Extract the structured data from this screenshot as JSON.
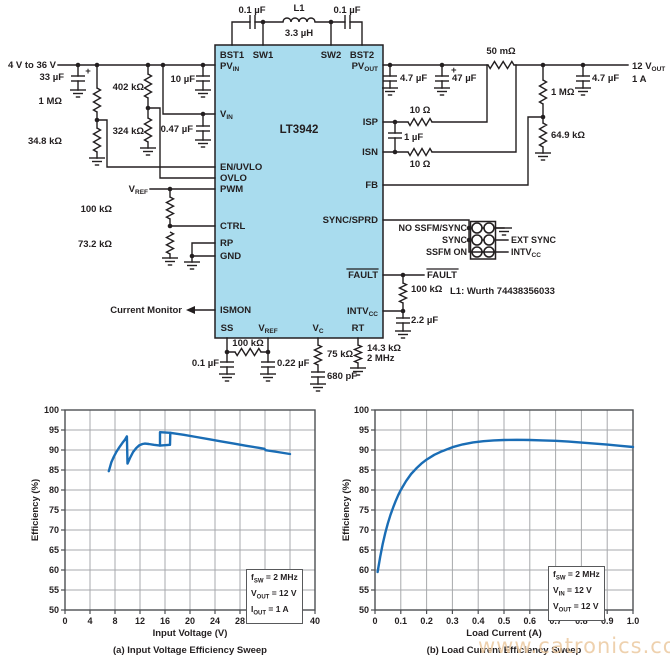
{
  "schematic": {
    "ic_name": "LT3942",
    "pins": {
      "bst1": "BST1",
      "sw1": "SW1",
      "sw2": "SW2",
      "bst2": "BST2",
      "pv_in": {
        "b": "PV",
        "s": "IN"
      },
      "v_in": {
        "b": "V",
        "s": "IN"
      },
      "en_uvlo": "EN/UVLO",
      "ovlo": "OVLO",
      "pwm": "PWM",
      "ctrl": "CTRL",
      "rp": "RP",
      "gnd": "GND",
      "ismon": "ISMON",
      "ss": "SS",
      "v_ref": {
        "b": "V",
        "s": "REF"
      },
      "v_c": {
        "b": "V",
        "s": "C"
      },
      "rt": "RT",
      "pv_out": {
        "b": "PV",
        "s": "OUT"
      },
      "isp": "ISP",
      "isn": "ISN",
      "fb": "FB",
      "sync_sprd": "SYNC/SPRD",
      "fault": "FAULT",
      "intvcc": {
        "b": "INTV",
        "s": "CC"
      }
    },
    "labels": {
      "c_bst1": "0.1 µF",
      "l1": "L1",
      "l1_val": "3.3 µH",
      "c_bst2": "0.1 µF",
      "vin_range": "4 V to 36 V",
      "c_in": "33 µF",
      "plus_in": "+",
      "r_uvlo_top": "1 MΩ",
      "r_uvlo_bot": "34.8 kΩ",
      "r_ovlo_top": "402 kΩ",
      "r_ovlo_bot": "324 kΩ",
      "c_pvin": "10 µF",
      "c_vin": "0.47 µF",
      "vref_net": {
        "b": "V",
        "s": "REF"
      },
      "r_ctrl_top": "100 kΩ",
      "r_ctrl_bot": "73.2 kΩ",
      "current_monitor": "Current Monitor",
      "r_ss": "100 kΩ",
      "c_ss": "0.1 µF",
      "c_vref": "0.22 µF",
      "r_vc": "75 kΩ",
      "c_vc": "680 pF",
      "r_rt": "14.3 kΩ",
      "rt_freq": "2 MHz",
      "r_sense": "50 mΩ",
      "c_out1": "4.7 µF",
      "plus_out": "+",
      "c_out2": "47 µF",
      "c_out3": "4.7 µF",
      "r_isp": "10 Ω",
      "r_isn": "10 Ω",
      "c_filt": "1 µF",
      "r_fb_top": "1 MΩ",
      "r_fb_bot": "64.9 kΩ",
      "out_v": {
        "b": "12 V",
        "s": "OUT"
      },
      "out_i": "1 A",
      "jumper_no_ssfm": "NO SSFM/SYNC",
      "jumper_sync": "SYNC",
      "jumper_ssfm_on": "SSFM ON",
      "ext_sync": "EXT SYNC",
      "intvcc_net": {
        "b": "INTV",
        "s": "CC"
      },
      "fault_net": "FAULT",
      "r_fault": "100 kΩ",
      "c_intvcc": "2.2 µF",
      "l1_note": "L1: Wurth 74438356033"
    }
  },
  "chart_data": [
    {
      "type": "line",
      "title": "(a) Input Voltage Efficiency Sweep",
      "xlabel": "Input Voltage (V)",
      "ylabel": "Efficiency (%)",
      "xlim": [
        0,
        40
      ],
      "ylim": [
        50,
        100
      ],
      "xticks": [
        "0",
        "4",
        "8",
        "12",
        "16",
        "20",
        "24",
        "28",
        "32",
        "36",
        "40"
      ],
      "yticks": [
        "50",
        "55",
        "60",
        "65",
        "70",
        "75",
        "80",
        "85",
        "90",
        "95",
        "100"
      ],
      "grid": true,
      "legend": "none",
      "annotation": [
        {
          "pre": "f",
          "sub": "SW",
          "post": " = 2 MHz"
        },
        {
          "pre": "V",
          "sub": "OUT",
          "post": " = 12 V"
        },
        {
          "pre": "I",
          "sub": "OUT",
          "post": " = 1 A"
        }
      ],
      "series": [
        {
          "name": "efficiency-sweep",
          "x": [
            7.0,
            7.4,
            7.8,
            8.2,
            8.7,
            9.2,
            9.6,
            9.85,
            9.9,
            10.0,
            10.4,
            10.9,
            11.4,
            11.9,
            12.4,
            12.8,
            13.4,
            14.2,
            15.2,
            16.8,
            16.85,
            17.5,
            19,
            21,
            23,
            25,
            27,
            29,
            31,
            31.9,
            32.1,
            34,
            36
          ],
          "y": [
            84.7,
            86.9,
            88.3,
            89.5,
            90.7,
            91.8,
            92.6,
            93.3,
            93.4,
            86.6,
            88.0,
            89.5,
            90.5,
            91.2,
            91.5,
            91.6,
            91.5,
            91.3,
            91.1,
            91.3,
            94.3,
            94.15,
            93.8,
            93.25,
            92.7,
            92.15,
            91.6,
            91.05,
            90.55,
            90.3,
            89.95,
            89.5,
            89.0
          ]
        },
        {
          "name": "hysteresis-segment",
          "x": [
            15.2,
            15.2,
            16.85
          ],
          "y": [
            91.1,
            94.45,
            94.3
          ]
        }
      ]
    },
    {
      "type": "line",
      "title": "(b) Load Current Efficiency Sweep",
      "xlabel": "Load Current (A)",
      "ylabel": "Efficiency (%)",
      "xlim": [
        0,
        1.0
      ],
      "ylim": [
        50,
        100
      ],
      "xticks": [
        "0",
        "0.1",
        "0.2",
        "0.3",
        "0.4",
        "0.5",
        "0.6",
        "0.7",
        "0.8",
        "0.9",
        "1.0"
      ],
      "yticks": [
        "50",
        "55",
        "60",
        "65",
        "70",
        "75",
        "80",
        "85",
        "90",
        "95",
        "100"
      ],
      "grid": true,
      "legend": "none",
      "annotation": [
        {
          "pre": "f",
          "sub": "SW",
          "post": " = 2 MHz"
        },
        {
          "pre": "V",
          "sub": "IN",
          "post": " = 12 V"
        },
        {
          "pre": "V",
          "sub": "OUT",
          "post": " = 12 V"
        }
      ],
      "series": [
        {
          "name": "efficiency-sweep",
          "x": [
            0.01,
            0.02,
            0.03,
            0.04,
            0.05,
            0.06,
            0.07,
            0.08,
            0.09,
            0.1,
            0.12,
            0.14,
            0.16,
            0.18,
            0.2,
            0.23,
            0.26,
            0.3,
            0.34,
            0.38,
            0.42,
            0.46,
            0.5,
            0.55,
            0.6,
            0.65,
            0.7,
            0.75,
            0.8,
            0.85,
            0.9,
            0.95,
            1.0
          ],
          "y": [
            59.5,
            63.3,
            66.5,
            69.3,
            71.7,
            73.8,
            75.6,
            77.2,
            78.7,
            80.0,
            82.2,
            84.0,
            85.4,
            86.6,
            87.6,
            88.8,
            89.7,
            90.7,
            91.4,
            91.9,
            92.2,
            92.4,
            92.5,
            92.55,
            92.5,
            92.4,
            92.3,
            92.1,
            91.85,
            91.6,
            91.35,
            91.05,
            90.75
          ]
        }
      ]
    }
  ],
  "watermark": "www.catronics.com",
  "colors": {
    "curve": "#1a6db5",
    "ic_fill": "#a9dcee",
    "watermark": "#ecc9a0",
    "text": "#231f20"
  }
}
